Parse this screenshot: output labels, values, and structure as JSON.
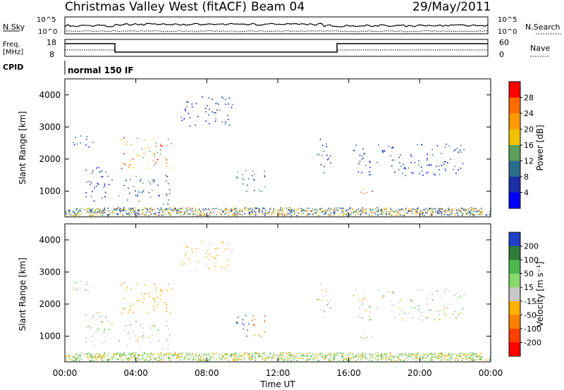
{
  "header": {
    "title": "Christmas Valley West (fitACF)",
    "beam": "Beam 04",
    "date": "29/May/2011"
  },
  "status_panels": {
    "nsky_label": "N.Sky",
    "nsearch_label": "N.Search",
    "nsky_ticks": [
      "10^5",
      "10^0"
    ],
    "nsearch_ticks": [
      "10^5",
      "10^0"
    ],
    "freq_label_1": "Freq.",
    "freq_label_2": "[MHz]",
    "freq_ticks": [
      "18",
      "8"
    ],
    "nave_label": "Nave",
    "nave_ticks": [
      "60",
      "0"
    ],
    "cpid_label": "CPID",
    "cpid_value": "normal 150 IF"
  },
  "chart_data": [
    {
      "type": "heatmap",
      "name": "power-panel",
      "ylabel": "Slant Range [km]",
      "yticks": [
        "4000",
        "3000",
        "2000",
        "1000"
      ],
      "ytick_values": [
        4000,
        3000,
        2000,
        1000
      ],
      "ylim": [
        200,
        4500
      ],
      "colorbar_label": "Power [dB]",
      "colorbar_ticks": [
        "28",
        "24",
        "20",
        "16",
        "12",
        "8",
        "4"
      ],
      "colorbar_colors": [
        "#ff0000",
        "#ff6a00",
        "#ff9a00",
        "#f2c200",
        "#5aa05a",
        "#2a6e8c",
        "#1a2ea8",
        "#0000ff"
      ],
      "scatter_regions": [
        {
          "t0": 0.3,
          "t1": 1.6,
          "r0": 2300,
          "r1": 2800,
          "level": "low"
        },
        {
          "t0": 1.0,
          "t1": 2.8,
          "r0": 700,
          "r1": 1800,
          "level": "low"
        },
        {
          "t0": 3.0,
          "t1": 6.0,
          "r0": 1700,
          "r1": 2700,
          "level": "high"
        },
        {
          "t0": 3.0,
          "t1": 6.0,
          "r0": 600,
          "r1": 1500,
          "level": "mid"
        },
        {
          "t0": 6.5,
          "t1": 9.5,
          "r0": 3000,
          "r1": 4000,
          "level": "low"
        },
        {
          "t0": 9.5,
          "t1": 11.3,
          "r0": 1000,
          "r1": 1800,
          "level": "mid"
        },
        {
          "t0": 14.2,
          "t1": 15.0,
          "r0": 1500,
          "r1": 2700,
          "level": "low"
        },
        {
          "t0": 16.0,
          "t1": 22.5,
          "r0": 1500,
          "r1": 2500,
          "level": "low"
        },
        {
          "t0": 16.5,
          "t1": 17.5,
          "r0": 900,
          "r1": 1200,
          "level": "high"
        }
      ]
    },
    {
      "type": "heatmap",
      "name": "velocity-panel",
      "ylabel": "Slant Range [km]",
      "yticks": [
        "4000",
        "3000",
        "2000",
        "1000"
      ],
      "ytick_values": [
        4000,
        3000,
        2000,
        1000
      ],
      "ylim": [
        200,
        4500
      ],
      "xlabel": "Time UT",
      "xticks": [
        "00:00",
        "04:00",
        "08:00",
        "12:00",
        "16:00",
        "20:00",
        "00:00"
      ],
      "xtick_values": [
        0,
        4,
        8,
        12,
        16,
        20,
        24
      ],
      "xlim": [
        0,
        24
      ],
      "colorbar_label": "Velocity [m s⁻¹]",
      "colorbar_ticks": [
        "200",
        "100",
        "50",
        "15",
        "-15",
        "-50",
        "-100",
        "-200"
      ],
      "colorbar_colors": [
        "#1f3fc8",
        "#2f7a3a",
        "#4db84d",
        "#86d86a",
        "#c8c8c8",
        "#ffb000",
        "#ff8000",
        "#ff4000",
        "#ff0000"
      ]
    }
  ]
}
